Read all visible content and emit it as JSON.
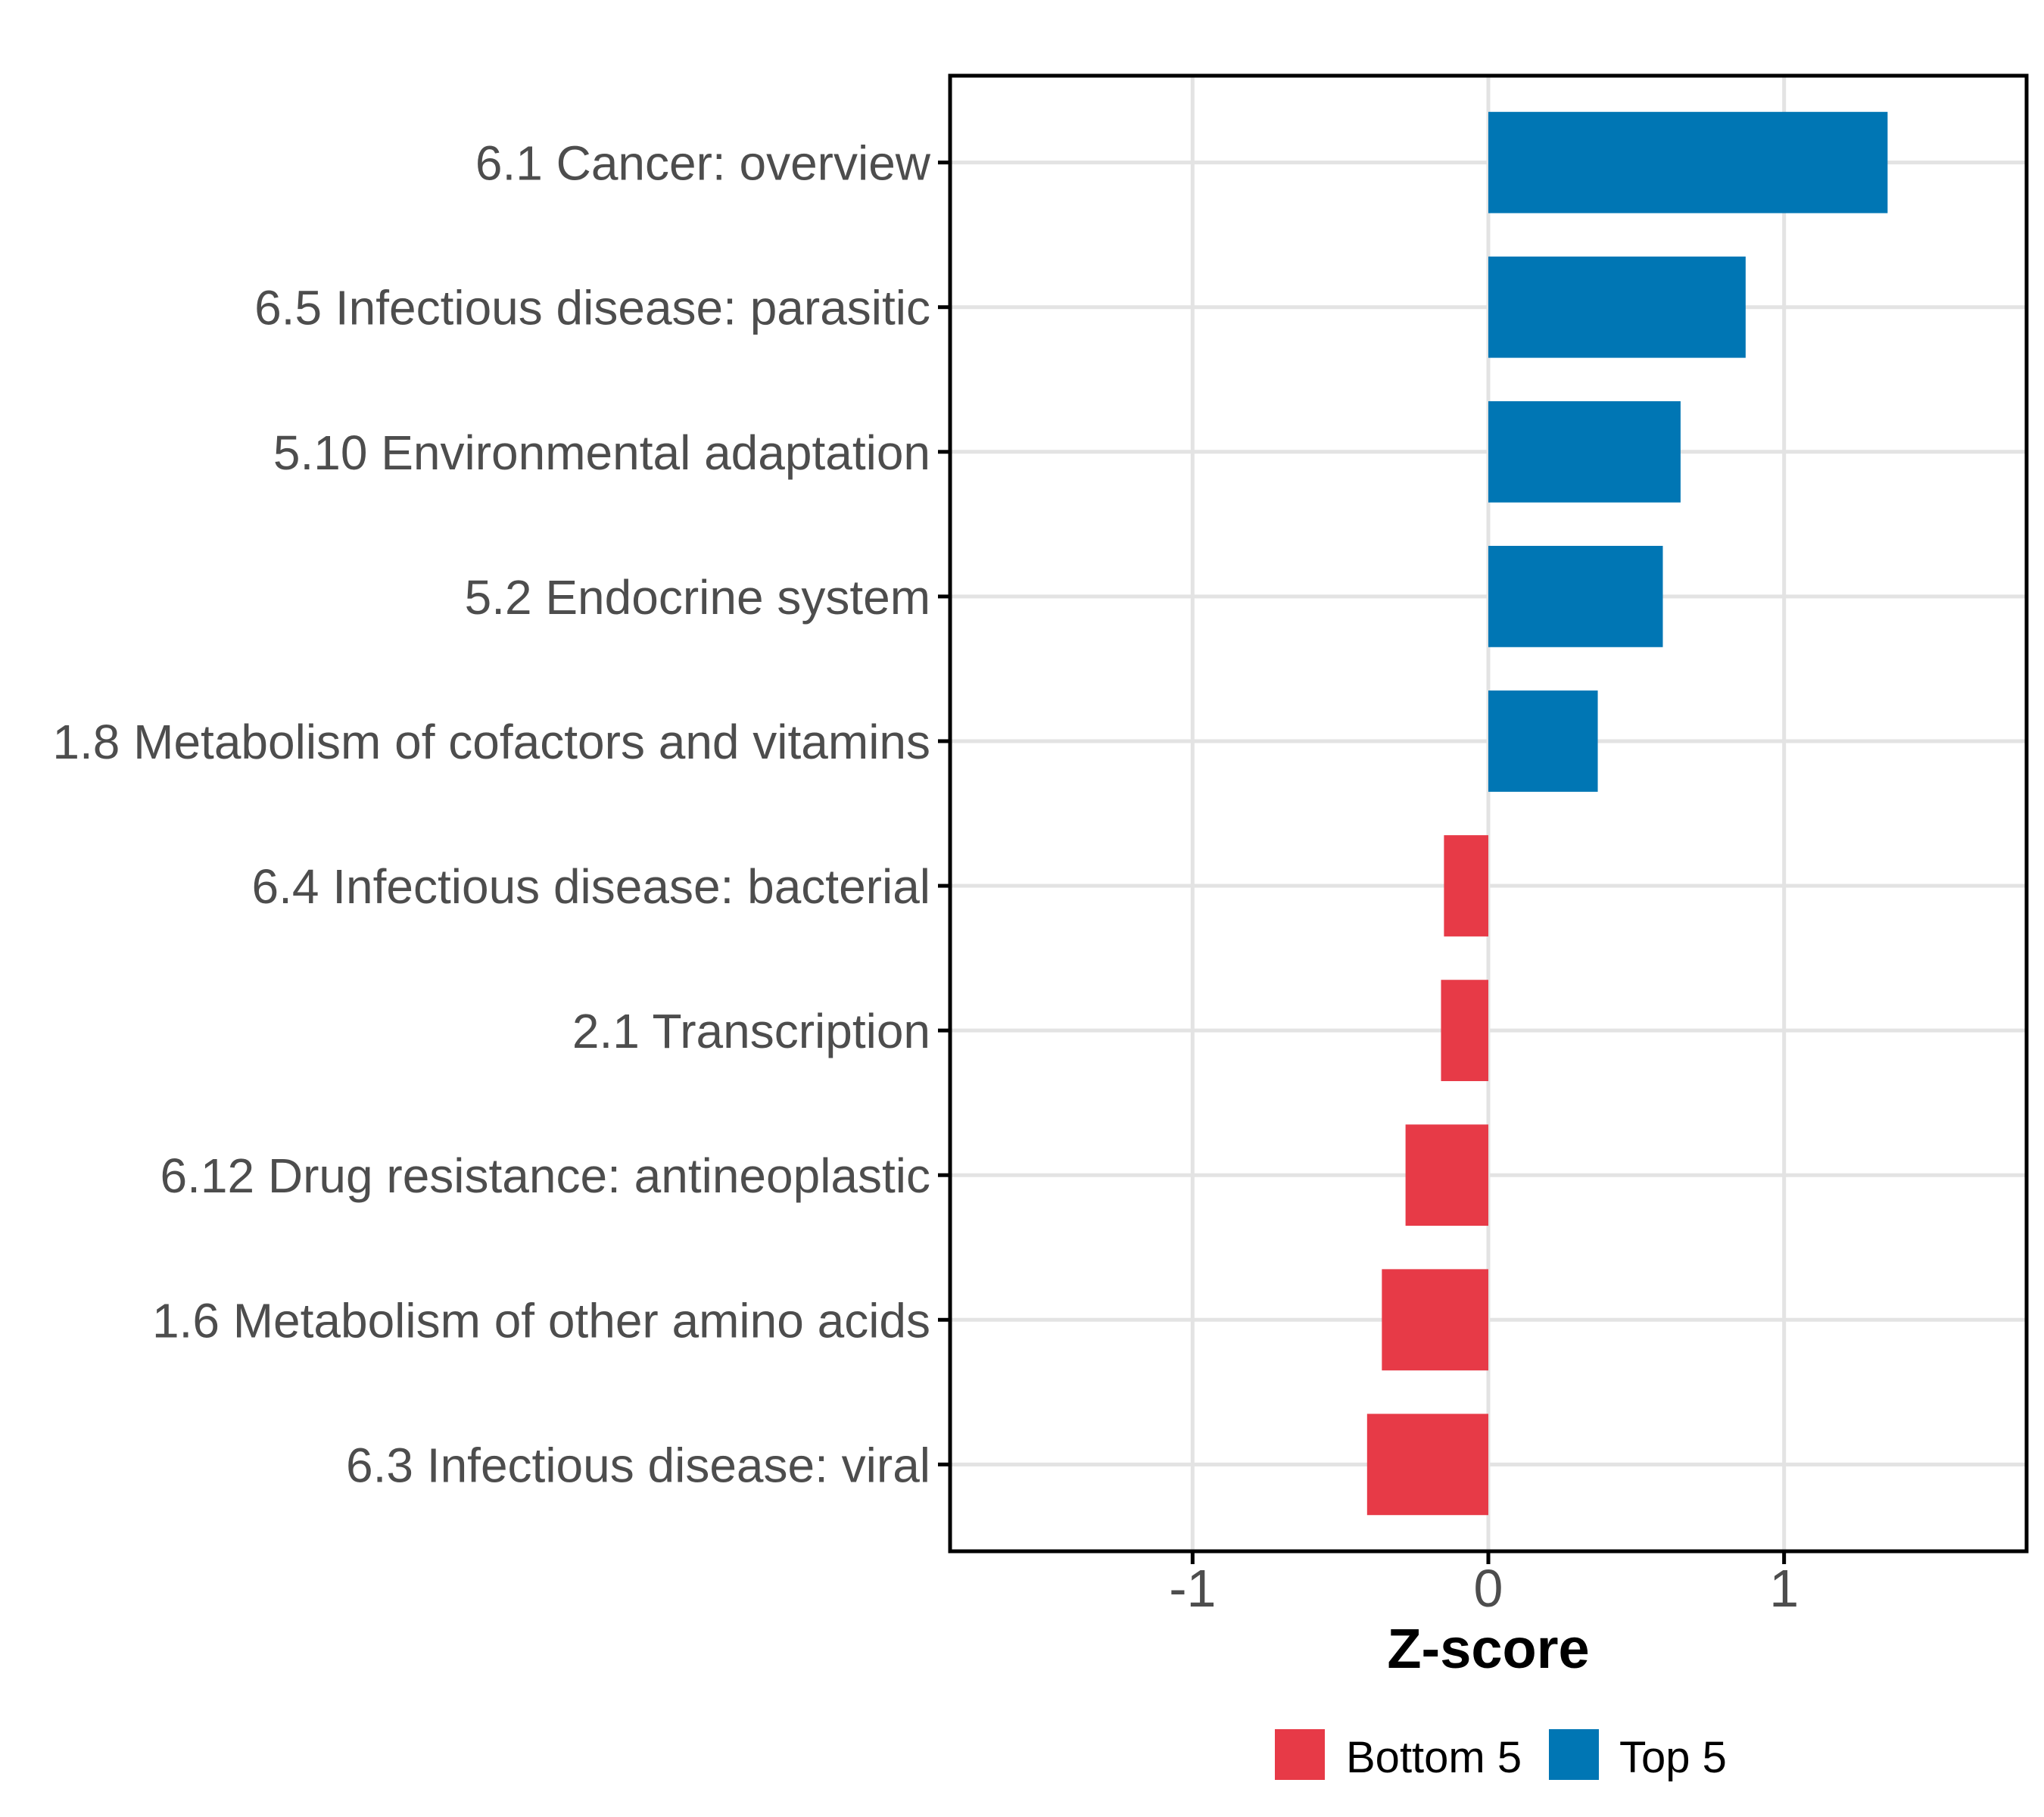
{
  "chart_data": {
    "type": "bar",
    "orientation": "horizontal",
    "title": "",
    "xlabel": "Z-score",
    "categories": [
      "6.1 Cancer: overview",
      "6.5 Infectious disease: parasitic",
      "5.10 Environmental adaptation",
      "5.2 Endocrine system",
      "1.8 Metabolism of cofactors and vitamins",
      "6.4 Infectious disease: bacterial",
      "2.1 Transcription",
      "6.12 Drug resistance: antineoplastic",
      "1.6 Metabolism of other amino acids",
      "6.3 Infectious disease: viral"
    ],
    "values": [
      1.35,
      0.87,
      0.65,
      0.59,
      0.37,
      -0.15,
      -0.16,
      -0.28,
      -0.36,
      -0.41
    ],
    "groups": [
      "Top 5",
      "Top 5",
      "Top 5",
      "Top 5",
      "Top 5",
      "Bottom 5",
      "Bottom 5",
      "Bottom 5",
      "Bottom 5",
      "Bottom 5"
    ],
    "series_colors": {
      "Top 5": "#0076B4",
      "Bottom 5": "#E73A47"
    },
    "x_ticks": [
      -1,
      0,
      1
    ],
    "xlim": [
      -1.82,
      1.82
    ],
    "grid": true,
    "gridline_color": "#E3E3E3",
    "axis_text_color": "#4D4D4D",
    "panel_border_color": "#000000",
    "tick_mark_color": "#000000",
    "legend": {
      "position": "bottom",
      "entries": [
        {
          "label": "Bottom 5",
          "color": "#E73A47"
        },
        {
          "label": "Top 5",
          "color": "#0076B4"
        }
      ]
    }
  }
}
